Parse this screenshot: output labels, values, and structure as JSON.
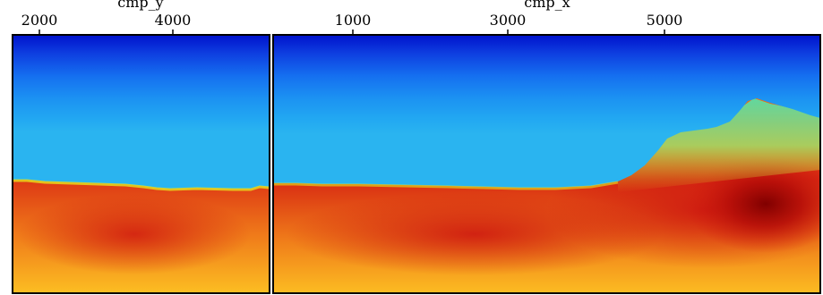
{
  "chart_data": [
    {
      "type": "heatmap",
      "xlabel": "cmp_y",
      "x_ticks": [
        2000,
        4000
      ],
      "xlim": [
        1600,
        5200
      ],
      "ylabel": "",
      "colormap": "jet",
      "colors": {
        "shallow": "#0018d8",
        "upper_layer": "#1f9ef0",
        "interface": "#e8f81e",
        "high_velocity": "#d81a10",
        "deep": "#fcb820"
      }
    },
    {
      "type": "heatmap",
      "xlabel": "cmp_x",
      "x_ticks": [
        1000,
        3000,
        5000
      ],
      "xlim": [
        0,
        6900
      ],
      "ylabel": "",
      "colormap": "jet",
      "colors": {
        "shallow": "#0018d8",
        "upper_layer": "#1f9ef0",
        "interface": "#e8f81e",
        "high_velocity": "#d81a10",
        "max_velocity": "#8a0000",
        "deep": "#fcb820"
      }
    }
  ]
}
